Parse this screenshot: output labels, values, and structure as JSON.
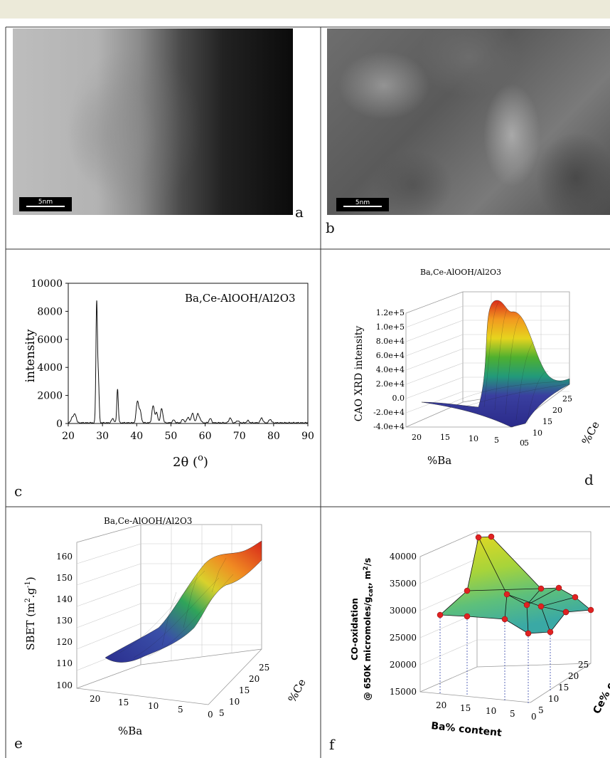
{
  "panels": {
    "a": {
      "label": "a",
      "scale_text": "5nm"
    },
    "b": {
      "label": "b",
      "scale_text": "5nm"
    },
    "c": {
      "label": "c"
    },
    "d": {
      "label": "d"
    },
    "e": {
      "label": "e"
    },
    "f": {
      "label": "f"
    }
  },
  "chart_data": [
    {
      "panel": "c",
      "type": "line",
      "title": "Ba,Ce-AlOOH/Al2O3",
      "xlabel": "2θ (o)",
      "ylabel": "intensity",
      "xlim": [
        20,
        90
      ],
      "ylim": [
        0,
        10000
      ],
      "x_ticks": [
        "20",
        "30",
        "40",
        "50",
        "60",
        "70",
        "80",
        "90"
      ],
      "y_ticks": [
        "0",
        "2000",
        "4000",
        "6000",
        "8000",
        "10000"
      ],
      "peaks": [
        {
          "x": 21.2,
          "y": 400
        },
        {
          "x": 22.0,
          "y": 600
        },
        {
          "x": 28.3,
          "y": 8500
        },
        {
          "x": 28.8,
          "y": 3000
        },
        {
          "x": 33.0,
          "y": 300
        },
        {
          "x": 34.4,
          "y": 2400
        },
        {
          "x": 40.2,
          "y": 1500
        },
        {
          "x": 41.0,
          "y": 800
        },
        {
          "x": 44.8,
          "y": 1200
        },
        {
          "x": 45.8,
          "y": 700
        },
        {
          "x": 47.3,
          "y": 1000
        },
        {
          "x": 50.8,
          "y": 200
        },
        {
          "x": 53.5,
          "y": 250
        },
        {
          "x": 55.0,
          "y": 400
        },
        {
          "x": 56.3,
          "y": 700
        },
        {
          "x": 57.8,
          "y": 600
        },
        {
          "x": 58.5,
          "y": 250
        },
        {
          "x": 61.5,
          "y": 300
        },
        {
          "x": 67.3,
          "y": 350
        },
        {
          "x": 69.5,
          "y": 150
        },
        {
          "x": 72.5,
          "y": 150
        },
        {
          "x": 76.5,
          "y": 350
        },
        {
          "x": 79.0,
          "y": 250
        }
      ],
      "baseline": 50
    },
    {
      "panel": "d",
      "type": "surface",
      "title": "Ba,Ce-AlOOH/Al2O3",
      "xlabel": "%Ba",
      "ylabel": "%Ce",
      "zlabel": "CAO XRD intensity",
      "x_ticks": [
        "20",
        "15",
        "10",
        "5",
        "0"
      ],
      "y_ticks": [
        "5",
        "10",
        "15",
        "20",
        "25"
      ],
      "z_ticks": [
        "-4.0e+4",
        "-2.0e+4",
        "0.0",
        "2.0e+4",
        "4.0e+4",
        "6.0e+4",
        "8.0e+4",
        "1.0e+5",
        "1.2e+5"
      ]
    },
    {
      "panel": "e",
      "type": "surface",
      "title": "Ba,Ce-AlOOH/Al2O3",
      "xlabel": "%Ba",
      "ylabel": "%Ce",
      "zlabel": "SBET (m2.g-1)",
      "x_ticks": [
        "20",
        "15",
        "10",
        "5",
        "0"
      ],
      "y_ticks": [
        "5",
        "10",
        "15",
        "20",
        "25"
      ],
      "z_ticks": [
        "100",
        "110",
        "120",
        "130",
        "140",
        "150",
        "160"
      ]
    },
    {
      "panel": "f",
      "type": "surface",
      "xlabel": "Ba% content",
      "ylabel": "Ce% content",
      "zlabel": "CO-oxidation @ 650K micromoles/gcat, m2/s",
      "x_ticks": [
        "20",
        "15",
        "10",
        "5",
        "0"
      ],
      "y_ticks": [
        "5",
        "10",
        "15",
        "20",
        "25"
      ],
      "z_ticks": [
        "15000",
        "20000",
        "25000",
        "30000",
        "35000",
        "40000"
      ]
    }
  ]
}
